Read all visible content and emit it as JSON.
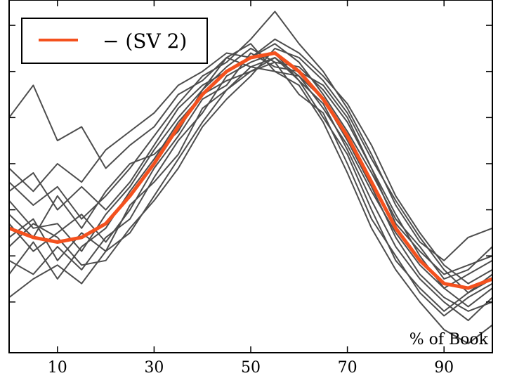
{
  "chart_data": {
    "type": "line",
    "title": "",
    "xlabel": "% of Book",
    "ylabel": "",
    "xlim": [
      0,
      100
    ],
    "ylim": [
      -3.1,
      4.55
    ],
    "xticks": [
      10,
      30,
      50,
      70,
      90
    ],
    "yticks": [
      -2,
      -1,
      0,
      1,
      2,
      3,
      4
    ],
    "yticklabels_visible": false,
    "grid": false,
    "legend": {
      "position": "top-left",
      "entries": [
        {
          "label": "− (SV 2)",
          "color": "#f4511e"
        }
      ]
    },
    "series": [
      {
        "name": "− (SV 2)",
        "color": "#f4511e",
        "x": [
          0,
          5,
          10,
          15,
          20,
          25,
          30,
          35,
          40,
          45,
          50,
          55,
          60,
          65,
          70,
          75,
          80,
          85,
          90,
          95,
          100
        ],
        "y": [
          -0.4,
          -0.6,
          -0.7,
          -0.6,
          -0.3,
          0.3,
          1.0,
          1.8,
          2.5,
          3.0,
          3.3,
          3.4,
          3.0,
          2.4,
          1.6,
          0.6,
          -0.4,
          -1.1,
          -1.6,
          -1.7,
          -1.5
        ]
      },
      {
        "name": "",
        "color": "#4d4d4d",
        "x": [
          0,
          5,
          10,
          15,
          20,
          25,
          30,
          35,
          40,
          45,
          50,
          55,
          60,
          65,
          70,
          75,
          80,
          85,
          90,
          95,
          100
        ],
        "y": [
          -0.6,
          -0.2,
          -1.1,
          -0.5,
          -0.9,
          0.1,
          0.6,
          1.2,
          2.2,
          2.6,
          3.0,
          3.2,
          2.5,
          2.1,
          1.0,
          -0.2,
          -1.0,
          -1.8,
          -2.3,
          -1.9,
          -1.6
        ]
      },
      {
        "name": "",
        "color": "#4d4d4d",
        "x": [
          0,
          5,
          10,
          15,
          20,
          25,
          30,
          35,
          40,
          45,
          50,
          55,
          60,
          65,
          70,
          75,
          80,
          85,
          90,
          95,
          100
        ],
        "y": [
          0.2,
          -0.4,
          -0.3,
          -0.9,
          -0.1,
          0.5,
          1.3,
          2.0,
          2.6,
          3.1,
          3.5,
          3.2,
          3.1,
          2.6,
          1.9,
          0.9,
          -0.3,
          -0.9,
          -1.4,
          -1.2,
          -1.0
        ]
      },
      {
        "name": "",
        "color": "#4d4d4d",
        "x": [
          0,
          5,
          10,
          15,
          20,
          25,
          30,
          35,
          40,
          45,
          50,
          55,
          60,
          65,
          70,
          75,
          80,
          85,
          90,
          95,
          100
        ],
        "y": [
          -1.1,
          -1.4,
          -0.8,
          -1.3,
          -0.6,
          -0.2,
          0.7,
          1.5,
          2.1,
          2.9,
          3.2,
          3.4,
          2.8,
          2.3,
          1.3,
          0.2,
          -0.8,
          -1.5,
          -2.0,
          -2.4,
          -1.9
        ]
      },
      {
        "name": "",
        "color": "#4d4d4d",
        "x": [
          0,
          5,
          10,
          15,
          20,
          25,
          30,
          35,
          40,
          45,
          50,
          55,
          60,
          65,
          70,
          75,
          80,
          85,
          90,
          95,
          100
        ],
        "y": [
          2.0,
          2.7,
          1.5,
          1.8,
          0.9,
          1.4,
          1.8,
          2.5,
          2.8,
          3.3,
          3.6,
          3.0,
          2.9,
          2.2,
          1.4,
          0.4,
          -0.5,
          -1.2,
          -1.7,
          -1.4,
          -1.1
        ]
      },
      {
        "name": "",
        "color": "#4d4d4d",
        "x": [
          0,
          5,
          10,
          15,
          20,
          25,
          30,
          35,
          40,
          45,
          50,
          55,
          60,
          65,
          70,
          75,
          80,
          85,
          90,
          95,
          100
        ],
        "y": [
          -0.8,
          -0.3,
          -0.6,
          -1.2,
          -1.1,
          -0.4,
          0.2,
          0.9,
          1.8,
          2.4,
          2.9,
          3.5,
          3.3,
          2.8,
          2.1,
          1.1,
          0.2,
          -0.6,
          -1.3,
          -1.8,
          -1.4
        ]
      },
      {
        "name": "",
        "color": "#4d4d4d",
        "x": [
          0,
          5,
          10,
          15,
          20,
          25,
          30,
          35,
          40,
          45,
          50,
          55,
          60,
          65,
          70,
          75,
          80,
          85,
          90,
          95,
          100
        ],
        "y": [
          0.6,
          0.1,
          0.5,
          -0.2,
          0.3,
          0.9,
          1.6,
          2.3,
          2.9,
          3.2,
          3.7,
          4.3,
          3.6,
          3.0,
          2.2,
          1.2,
          0.1,
          -0.7,
          -1.1,
          -0.6,
          -0.4
        ]
      },
      {
        "name": "",
        "color": "#4d4d4d",
        "x": [
          0,
          5,
          10,
          15,
          20,
          25,
          30,
          35,
          40,
          45,
          50,
          55,
          60,
          65,
          70,
          75,
          80,
          85,
          90,
          95,
          100
        ],
        "y": [
          -1.9,
          -1.5,
          -1.2,
          -1.6,
          -0.9,
          -0.5,
          0.3,
          1.1,
          1.9,
          2.6,
          3.1,
          3.0,
          2.7,
          1.9,
          0.8,
          -0.4,
          -1.3,
          -2.0,
          -2.6,
          -2.9,
          -2.5
        ]
      },
      {
        "name": "",
        "color": "#4d4d4d",
        "x": [
          0,
          5,
          10,
          15,
          20,
          25,
          30,
          35,
          40,
          45,
          50,
          55,
          60,
          65,
          70,
          75,
          80,
          85,
          90,
          95,
          100
        ],
        "y": [
          0.9,
          0.4,
          1.0,
          0.6,
          1.3,
          1.7,
          2.1,
          2.7,
          3.0,
          3.4,
          3.3,
          3.6,
          3.2,
          2.5,
          1.7,
          0.8,
          -0.2,
          -0.8,
          -1.5,
          -1.3,
          -0.8
        ]
      },
      {
        "name": "",
        "color": "#4d4d4d",
        "x": [
          0,
          5,
          10,
          15,
          20,
          25,
          30,
          35,
          40,
          45,
          50,
          55,
          60,
          65,
          70,
          75,
          80,
          85,
          90,
          95,
          100
        ],
        "y": [
          -0.3,
          -0.9,
          -0.5,
          -0.1,
          -0.7,
          0.0,
          0.9,
          1.6,
          2.4,
          2.7,
          3.4,
          3.1,
          3.0,
          2.7,
          2.0,
          0.9,
          -0.1,
          -1.0,
          -1.7,
          -2.1,
          -1.7
        ]
      },
      {
        "name": "",
        "color": "#4d4d4d",
        "x": [
          0,
          5,
          10,
          15,
          20,
          25,
          30,
          35,
          40,
          45,
          50,
          55,
          60,
          65,
          70,
          75,
          80,
          85,
          90,
          95,
          100
        ],
        "y": [
          -1.4,
          -0.7,
          -1.5,
          -0.8,
          -0.4,
          0.4,
          1.1,
          1.9,
          2.5,
          2.8,
          3.0,
          3.3,
          2.9,
          2.4,
          1.5,
          0.5,
          -0.6,
          -1.4,
          -1.9,
          -2.2,
          -2.0
        ]
      },
      {
        "name": "",
        "color": "#4d4d4d",
        "x": [
          0,
          5,
          10,
          15,
          20,
          25,
          30,
          35,
          40,
          45,
          50,
          55,
          60,
          65,
          70,
          75,
          80,
          85,
          90,
          95,
          100
        ],
        "y": [
          0.4,
          0.8,
          0.0,
          0.5,
          0.0,
          0.6,
          1.4,
          2.2,
          2.7,
          3.0,
          3.3,
          3.7,
          3.4,
          2.9,
          2.3,
          1.4,
          0.3,
          -0.5,
          -1.2,
          -1.6,
          -1.3
        ]
      },
      {
        "name": "",
        "color": "#4d4d4d",
        "x": [
          0,
          5,
          10,
          15,
          20,
          25,
          30,
          35,
          40,
          45,
          50,
          55,
          60,
          65,
          70,
          75,
          80,
          85,
          90,
          95,
          100
        ],
        "y": [
          -0.1,
          -0.6,
          0.3,
          -0.4,
          0.4,
          1.0,
          1.2,
          1.7,
          2.6,
          3.3,
          3.1,
          3.3,
          2.8,
          2.0,
          1.2,
          0.0,
          -1.1,
          -1.7,
          -2.2,
          -1.8,
          -1.5
        ]
      }
    ]
  }
}
